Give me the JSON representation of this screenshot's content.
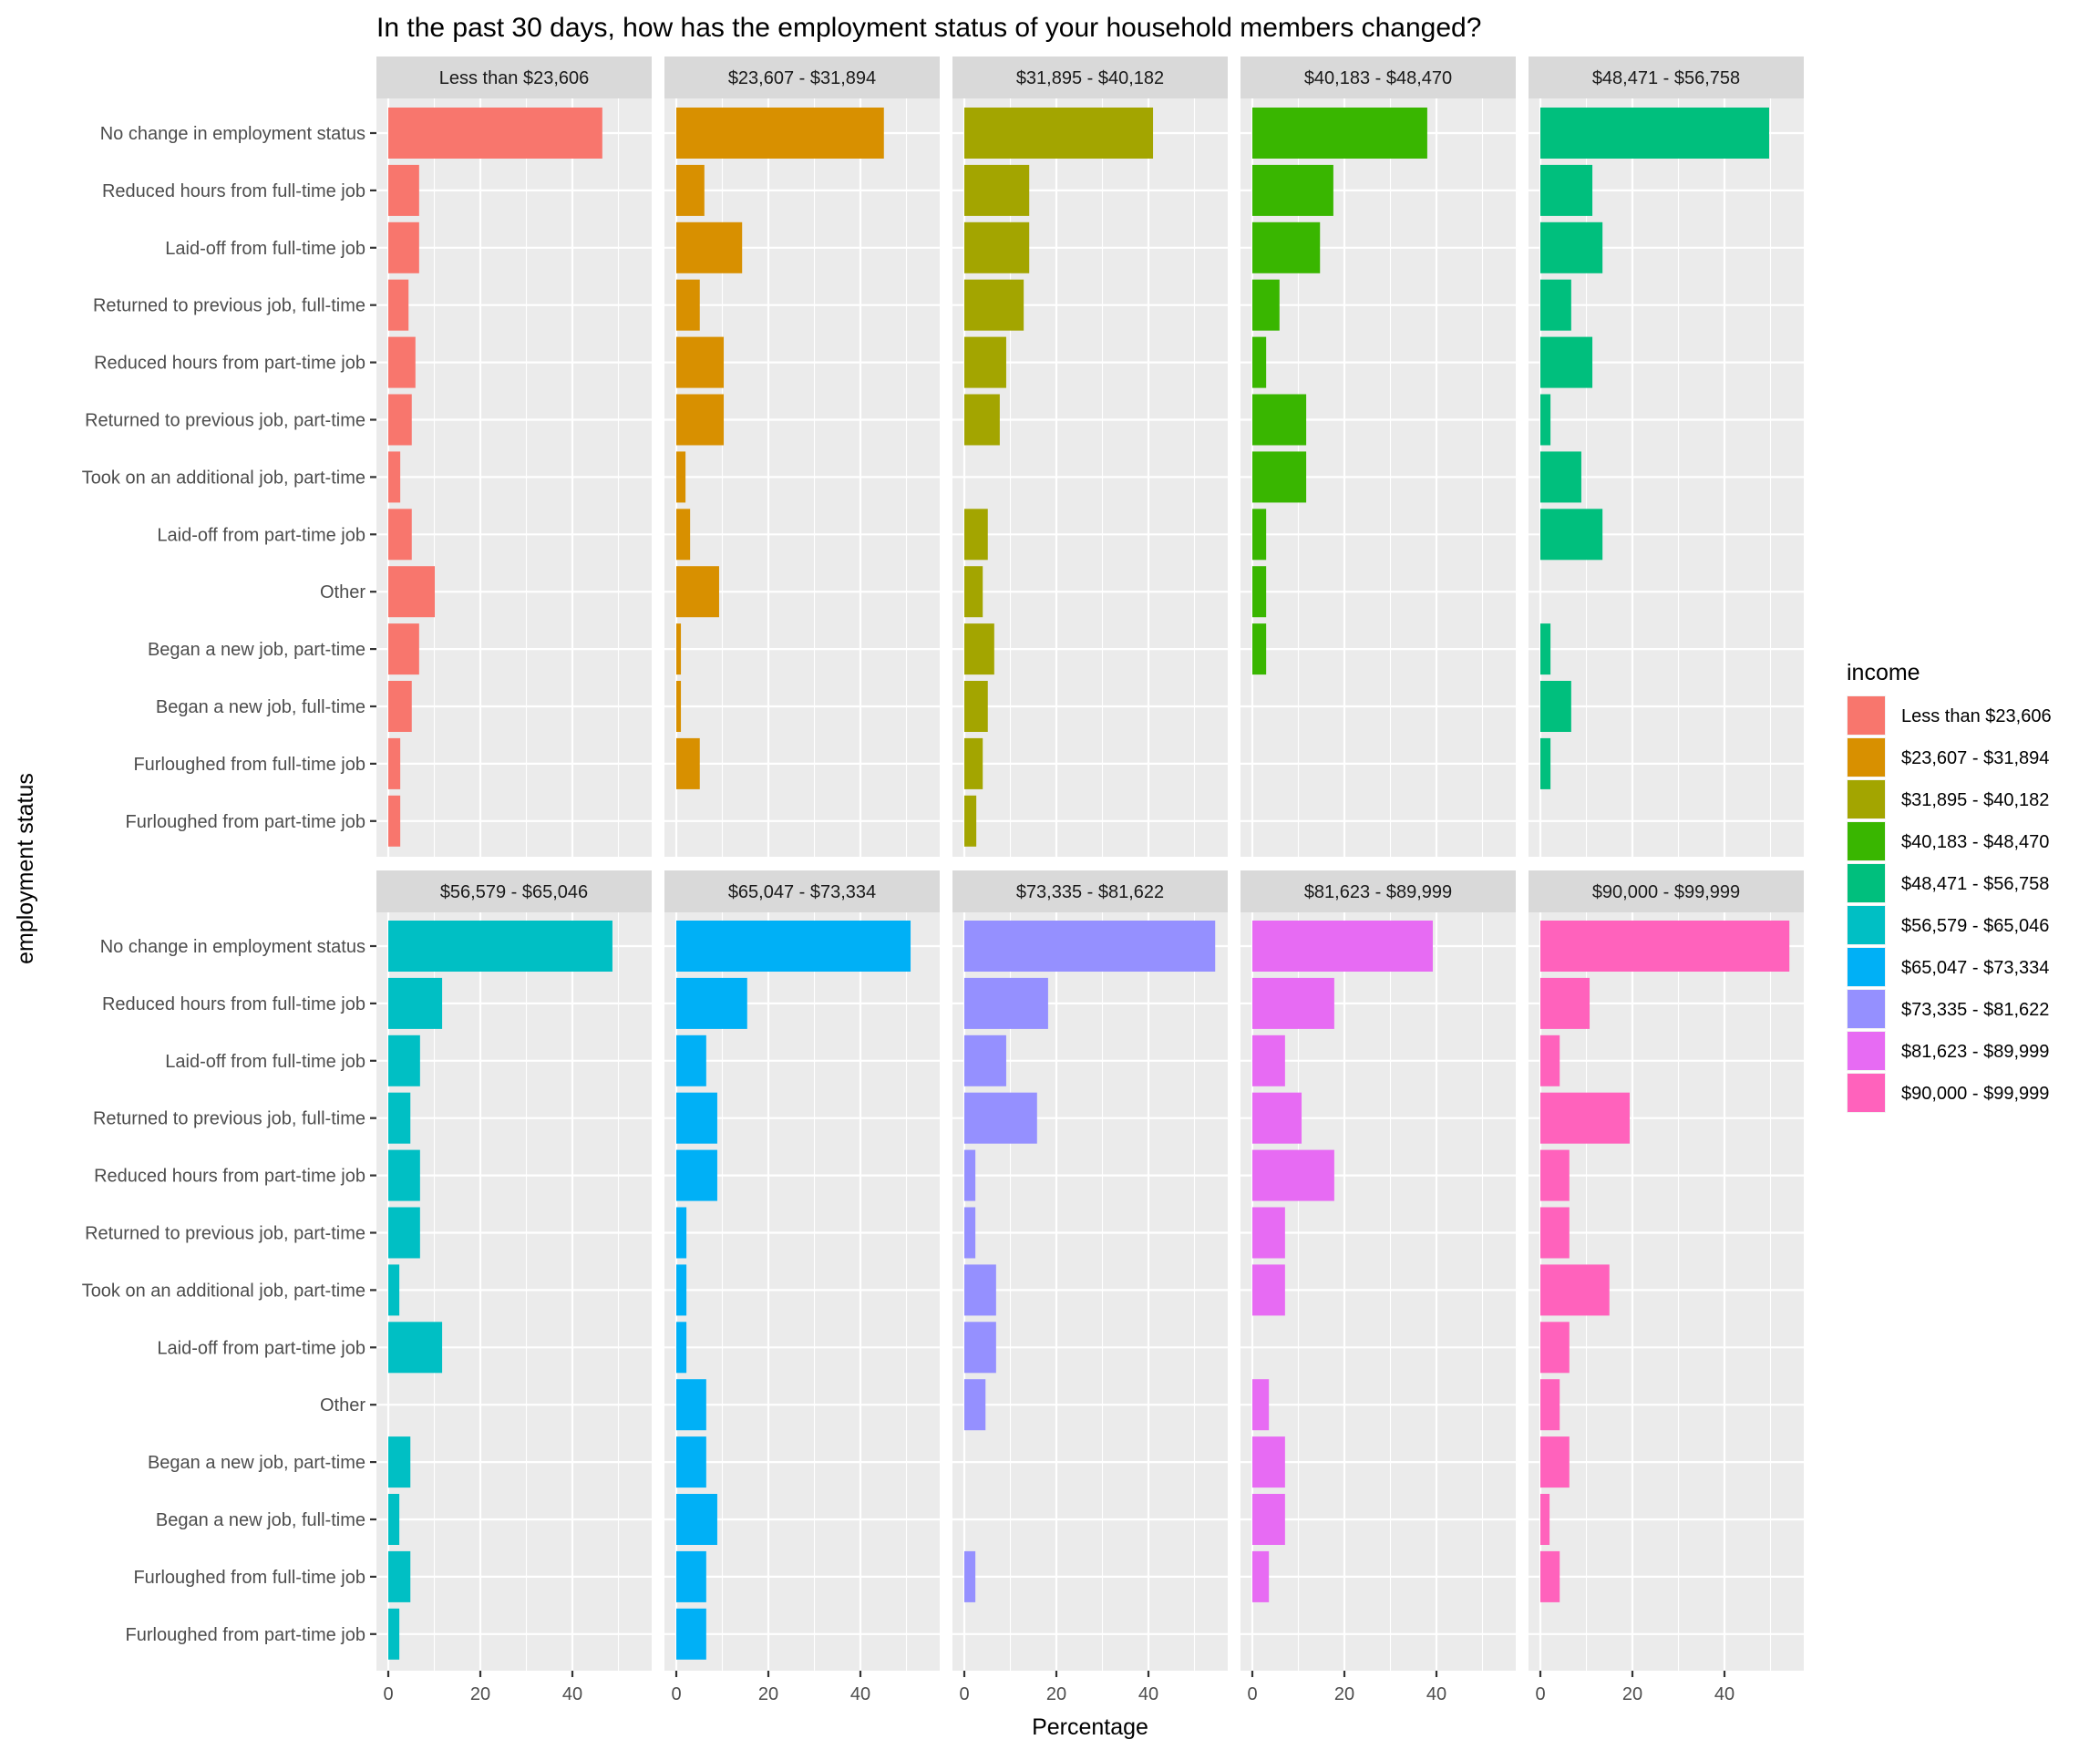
{
  "chart_data": {
    "type": "bar",
    "orientation": "horizontal",
    "faceted": true,
    "title": "In the past 30 days, how has the employment status of your household members changed?",
    "xlabel": "Percentage",
    "ylabel": "employment status",
    "xlim": [
      0,
      55
    ],
    "x_ticks": [
      0,
      20,
      40
    ],
    "grid": true,
    "legend": {
      "title": "income",
      "position": "right"
    },
    "categories": [
      "No change in employment status",
      "Reduced hours from full-time job",
      "Laid-off from full-time job",
      "Returned to previous job, full-time",
      "Reduced hours from part-time job",
      "Returned to previous job, part-time",
      "Took on an additional job, part-time",
      "Laid-off from part-time job",
      "Other",
      "Began a new job, part-time",
      "Began a new job, full-time",
      "Furloughed from full-time job",
      "Furloughed from part-time job"
    ],
    "series": [
      {
        "name": "Less than $23,606",
        "color": "#F8766D",
        "values": [
          46.5,
          6.7,
          6.7,
          4.4,
          5.9,
          5.1,
          2.6,
          5.1,
          10.1,
          6.7,
          5.1,
          2.6,
          2.6
        ]
      },
      {
        "name": "$23,607 - $31,894",
        "color": "#D89000",
        "values": [
          45.1,
          6.1,
          14.3,
          5.1,
          10.3,
          10.3,
          2.0,
          3.0,
          9.3,
          1.0,
          1.0,
          5.1,
          0
        ]
      },
      {
        "name": "$31,895 - $40,182",
        "color": "#A3A500",
        "values": [
          41.0,
          14.1,
          14.1,
          12.9,
          9.1,
          7.7,
          0,
          5.1,
          4.0,
          6.5,
          5.1,
          4.0,
          2.6
        ]
      },
      {
        "name": "$40,183 - $48,470",
        "color": "#39B600",
        "values": [
          38.0,
          17.6,
          14.7,
          5.9,
          3.0,
          11.7,
          11.7,
          3.0,
          3.0,
          3.0,
          0,
          0,
          0
        ]
      },
      {
        "name": "$48,471 - $56,758",
        "color": "#00BF7D",
        "values": [
          49.7,
          11.3,
          13.5,
          6.7,
          11.3,
          2.2,
          8.9,
          13.5,
          0,
          2.2,
          6.7,
          2.2,
          0
        ]
      },
      {
        "name": "$56,579 - $65,046",
        "color": "#00BFC4",
        "values": [
          48.7,
          11.7,
          6.9,
          4.8,
          6.9,
          6.9,
          2.4,
          11.7,
          0,
          4.8,
          2.4,
          4.8,
          2.4
        ]
      },
      {
        "name": "$65,047 - $73,334",
        "color": "#00B0F6",
        "values": [
          50.9,
          15.4,
          6.5,
          8.9,
          8.9,
          2.2,
          2.2,
          2.2,
          6.5,
          6.5,
          8.9,
          6.5,
          6.5
        ]
      },
      {
        "name": "$73,335 - $81,622",
        "color": "#9590FF",
        "values": [
          54.5,
          18.2,
          9.1,
          15.8,
          2.4,
          2.4,
          6.9,
          6.9,
          4.6,
          0,
          0,
          2.4,
          0
        ]
      },
      {
        "name": "$81,623 - $89,999",
        "color": "#E76BF3",
        "values": [
          39.2,
          17.8,
          7.1,
          10.7,
          17.8,
          7.1,
          7.1,
          0,
          3.6,
          7.1,
          7.1,
          3.6,
          0
        ]
      },
      {
        "name": "$90,000 - $99,999",
        "color": "#FF62BC",
        "values": [
          54.1,
          10.7,
          4.2,
          19.4,
          6.3,
          6.3,
          15.0,
          6.3,
          4.2,
          6.3,
          2.0,
          4.2,
          0
        ]
      }
    ]
  }
}
